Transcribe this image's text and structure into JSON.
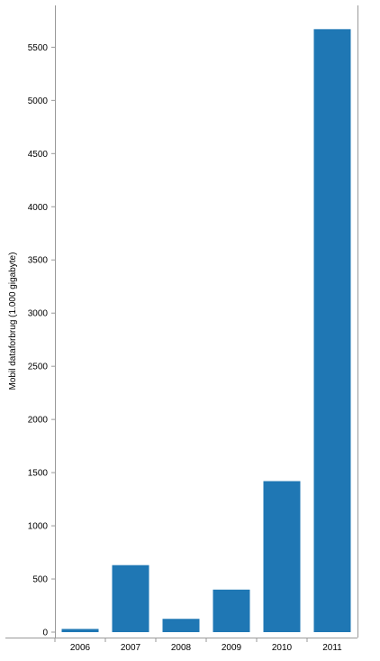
{
  "chart_data": {
    "type": "bar",
    "categories": [
      "2006",
      "2007",
      "2008",
      "2009",
      "2010",
      "2011"
    ],
    "values": [
      30,
      630,
      125,
      400,
      1420,
      5670
    ],
    "title": "",
    "xlabel": "",
    "ylabel": "Mobil dataforbrug (1.000 gigabyte)",
    "ylim": [
      0,
      5800
    ],
    "yticks": [
      0,
      500,
      1000,
      1500,
      2000,
      2500,
      3000,
      3500,
      4000,
      4500,
      5000,
      5500
    ],
    "grid": false,
    "bar_color": "#1f77b4"
  }
}
